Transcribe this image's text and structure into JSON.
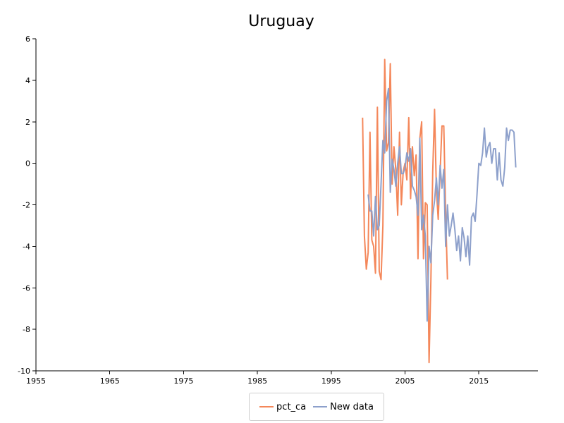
{
  "chart_data": {
    "type": "line",
    "title": "Uruguay",
    "xlabel": "",
    "ylabel": "",
    "xlim": [
      1955,
      2023
    ],
    "ylim": [
      -10,
      6
    ],
    "x_ticks": [
      "1955",
      "1965",
      "1975",
      "1985",
      "1995",
      "2005",
      "2015"
    ],
    "y_ticks": [
      "6",
      "4",
      "2",
      "0",
      "-2",
      "-4",
      "-6",
      "-8",
      "-10"
    ],
    "grid": false,
    "legend_position": "bottom-center",
    "series": [
      {
        "name": "pct_ca",
        "color": "#f4875a",
        "x": [
          1999.25,
          1999.5,
          1999.75,
          2000.0,
          2000.25,
          2000.5,
          2000.75,
          2001.0,
          2001.25,
          2001.5,
          2001.75,
          2002.0,
          2002.25,
          2002.5,
          2002.75,
          2003.0,
          2003.25,
          2003.5,
          2003.75,
          2004.0,
          2004.25,
          2004.5,
          2004.75,
          2005.0,
          2005.25,
          2005.5,
          2005.75,
          2006.0,
          2006.25,
          2006.5,
          2006.75,
          2007.0,
          2007.25,
          2007.5,
          2007.75,
          2008.0,
          2008.25,
          2008.5,
          2008.75,
          2009.0,
          2009.25,
          2009.5,
          2009.75,
          2010.0,
          2010.25,
          2010.5,
          2010.75
        ],
        "y": [
          2.2,
          -3.5,
          -5.1,
          -4.3,
          1.5,
          -3.7,
          -4.0,
          -5.3,
          2.7,
          -5.2,
          -5.6,
          -3.0,
          5.0,
          0.6,
          1.0,
          4.8,
          -1.0,
          0.8,
          -0.3,
          -2.5,
          1.5,
          -2.0,
          -0.4,
          0.0,
          -0.8,
          2.2,
          -1.7,
          0.8,
          -0.6,
          0.4,
          -4.6,
          1.2,
          2.0,
          -4.6,
          -1.9,
          -2.0,
          -9.6,
          -5.6,
          -0.4,
          2.6,
          -1.3,
          -2.7,
          -0.4,
          1.8,
          1.8,
          -2.4,
          -5.6
        ]
      },
      {
        "name": "New data",
        "color": "#8da0cb",
        "x": [
          2000.0,
          2000.25,
          2000.5,
          2000.75,
          2001.0,
          2001.25,
          2001.5,
          2001.75,
          2002.0,
          2002.25,
          2002.5,
          2002.75,
          2003.0,
          2003.25,
          2003.5,
          2003.75,
          2004.0,
          2004.25,
          2004.5,
          2004.75,
          2005.0,
          2005.25,
          2005.5,
          2005.75,
          2006.0,
          2006.25,
          2006.5,
          2006.75,
          2007.0,
          2007.25,
          2007.5,
          2007.75,
          2008.0,
          2008.25,
          2008.5,
          2008.75,
          2009.0,
          2009.25,
          2009.5,
          2009.75,
          2010.0,
          2010.25,
          2010.5,
          2010.75,
          2011.0,
          2011.25,
          2011.5,
          2011.75,
          2012.0,
          2012.25,
          2012.5,
          2012.75,
          2013.0,
          2013.25,
          2013.5,
          2013.75,
          2014.0,
          2014.25,
          2014.5,
          2014.75,
          2015.0,
          2015.25,
          2015.5,
          2015.75,
          2016.0,
          2016.25,
          2016.5,
          2016.75,
          2017.0,
          2017.25,
          2017.5,
          2017.75,
          2018.0,
          2018.25,
          2018.5,
          2018.75,
          2019.0,
          2019.25,
          2019.5,
          2019.75,
          2020.0
        ],
        "y": [
          -1.5,
          -2.3,
          -2.3,
          -3.5,
          -1.6,
          -3.2,
          -3.0,
          -1.0,
          1.1,
          0.5,
          3.0,
          3.6,
          -1.4,
          0.2,
          -0.3,
          -1.1,
          0.0,
          0.8,
          -0.5,
          -0.5,
          -0.2,
          0.5,
          0.1,
          0.7,
          -1.1,
          -1.3,
          -1.6,
          -2.5,
          1.2,
          -3.2,
          -2.5,
          -3.5,
          -7.6,
          -4.0,
          -4.8,
          -2.5,
          -1.8,
          -0.7,
          -2.0,
          -0.1,
          -1.2,
          -0.3,
          -4.0,
          -2.0,
          -3.5,
          -3.0,
          -2.4,
          -3.2,
          -4.2,
          -3.5,
          -4.7,
          -3.1,
          -3.6,
          -4.5,
          -3.5,
          -4.9,
          -2.6,
          -2.4,
          -2.8,
          -1.5,
          0.0,
          -0.1,
          0.5,
          1.7,
          0.3,
          0.8,
          1.0,
          0.0,
          0.7,
          0.7,
          -0.8,
          0.5,
          -0.8,
          -1.1,
          -0.2,
          1.7,
          1.1,
          1.6,
          1.6,
          1.5,
          -0.2
        ]
      }
    ]
  }
}
